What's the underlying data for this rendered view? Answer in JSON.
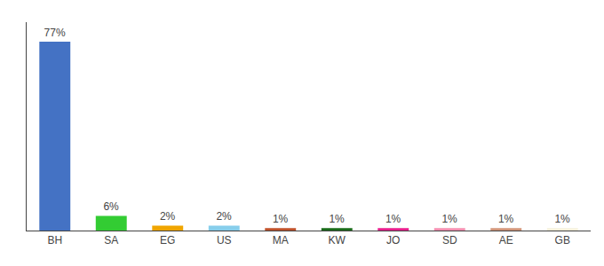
{
  "chart_data": {
    "type": "bar",
    "categories": [
      "BH",
      "SA",
      "EG",
      "US",
      "MA",
      "KW",
      "JO",
      "SD",
      "AE",
      "GB"
    ],
    "values": [
      77,
      6,
      2,
      2,
      1,
      1,
      1,
      1,
      1,
      1
    ],
    "value_labels": [
      "77%",
      "6%",
      "2%",
      "2%",
      "1%",
      "1%",
      "1%",
      "1%",
      "1%",
      "1%"
    ],
    "data_labels": true,
    "colors": [
      "#4472C4",
      "#33CC33",
      "#F0A500",
      "#87CEEB",
      "#C0522A",
      "#1A6B1A",
      "#E91E8C",
      "#F48FB1",
      "#D2967A",
      "#F5F0DC"
    ],
    "ylim": [
      0,
      85
    ],
    "tick_labels": "x",
    "grid": false
  }
}
